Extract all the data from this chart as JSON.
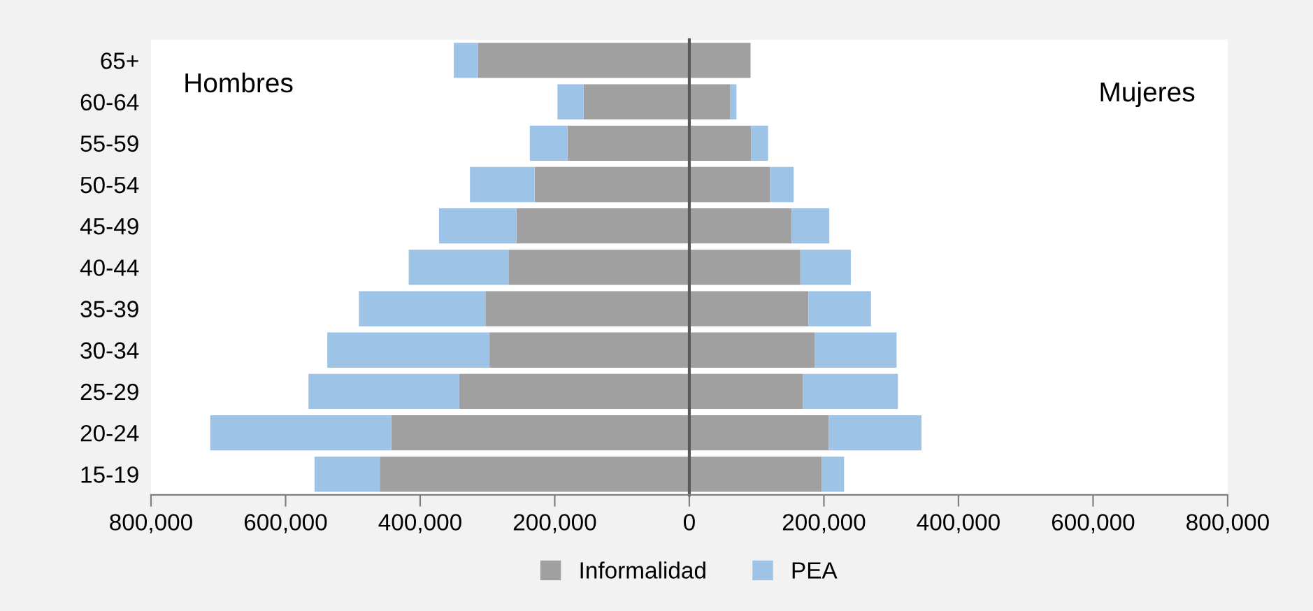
{
  "chart_data": {
    "type": "bar",
    "orientation": "horizontal",
    "stacked": true,
    "categories": [
      "65+",
      "60-64",
      "55-59",
      "50-54",
      "45-49",
      "40-44",
      "35-39",
      "30-34",
      "25-29",
      "20-24",
      "15-19"
    ],
    "series": [
      {
        "name": "Informalidad",
        "color": "#a0a0a0",
        "values": [
          -314000,
          -157000,
          -181000,
          -230000,
          -257000,
          -268000,
          -303000,
          -297000,
          -342000,
          -443000,
          -460000
        ]
      },
      {
        "name": "PEA",
        "color": "#9dc3e6",
        "values": [
          -36000,
          -39000,
          -56000,
          -96000,
          -115000,
          -149000,
          -188000,
          -241000,
          -224000,
          -269000,
          -97000
        ]
      },
      {
        "color": "#a0a0a0",
        "values": [
          91000,
          61000,
          92000,
          120000,
          152000,
          165000,
          177000,
          186000,
          169000,
          207000,
          197000
        ]
      },
      {
        "color": "#9dc3e6",
        "values": [
          0,
          9000,
          25000,
          35000,
          56000,
          75000,
          93000,
          122000,
          141000,
          138000,
          33000
        ]
      }
    ],
    "xlim": [
      -800000,
      800000
    ],
    "xticks": [
      {
        "value": -800000,
        "label": "800,000"
      },
      {
        "value": -600000,
        "label": "600,000"
      },
      {
        "value": -400000,
        "label": "400,000"
      },
      {
        "value": -200000,
        "label": "200,000"
      },
      0,
      {
        "value": 200000,
        "label": "200,000"
      },
      {
        "value": 400000,
        "label": "400,000"
      },
      {
        "value": 600000,
        "label": "600,000"
      },
      {
        "value": 800000,
        "label": "800,000"
      }
    ],
    "annotations": [
      "Hombres",
      "Mujeres"
    ],
    "legend": "bottom"
  }
}
